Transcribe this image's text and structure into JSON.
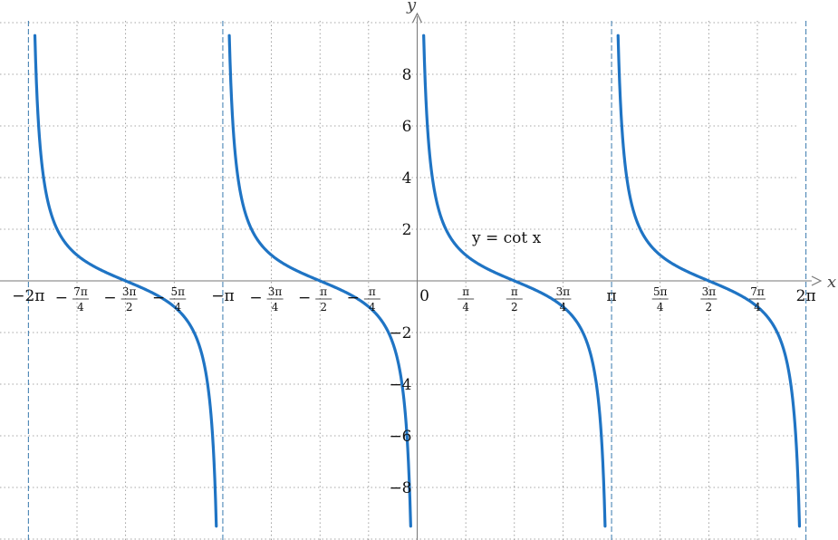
{
  "chart_data": {
    "type": "line",
    "function": "cot",
    "annotation": "y = cot x",
    "xlabel": "x",
    "ylabel": "y",
    "xlim": [
      -6.45,
      6.55
    ],
    "ylim": [
      -10.0,
      10.0
    ],
    "grid": true,
    "asymptotes": [
      "-2π",
      "-π",
      "0",
      "π",
      "2π"
    ],
    "x_ticks": [
      {
        "value": -6.283185,
        "label": "−2π"
      },
      {
        "value": -5.497787,
        "num": "7π",
        "den": "4",
        "neg": true
      },
      {
        "value": -4.712389,
        "num": "3π",
        "den": "2",
        "neg": true
      },
      {
        "value": -3.926991,
        "num": "5π",
        "den": "4",
        "neg": true
      },
      {
        "value": -3.141593,
        "label": "−π"
      },
      {
        "value": -2.356194,
        "num": "3π",
        "den": "4",
        "neg": true
      },
      {
        "value": -1.570796,
        "num": "π",
        "den": "2",
        "neg": true
      },
      {
        "value": -0.785398,
        "num": "π",
        "den": "4",
        "neg": true
      },
      {
        "value": 0,
        "label": "0"
      },
      {
        "value": 0.785398,
        "num": "π",
        "den": "4",
        "neg": false
      },
      {
        "value": 1.570796,
        "num": "π",
        "den": "2",
        "neg": false
      },
      {
        "value": 2.356194,
        "num": "3π",
        "den": "4",
        "neg": false
      },
      {
        "value": 3.141593,
        "label": "π"
      },
      {
        "value": 3.926991,
        "num": "5π",
        "den": "4",
        "neg": false
      },
      {
        "value": 4.712389,
        "num": "3π",
        "den": "2",
        "neg": false
      },
      {
        "value": 5.497787,
        "num": "7π",
        "den": "4",
        "neg": false
      },
      {
        "value": 6.283185,
        "label": "2π"
      }
    ],
    "y_ticks": [
      {
        "value": -8,
        "label": "−8"
      },
      {
        "value": -6,
        "label": "−6"
      },
      {
        "value": -4,
        "label": "−4"
      },
      {
        "value": -2,
        "label": "−2"
      },
      {
        "value": 2,
        "label": "2"
      },
      {
        "value": 4,
        "label": "4"
      },
      {
        "value": 6,
        "label": "6"
      },
      {
        "value": 8,
        "label": "8"
      }
    ],
    "series": [
      {
        "branch": "(-2π, -π)",
        "color": "#1f74c4"
      },
      {
        "branch": "(-π, 0)",
        "color": "#1f74c4"
      },
      {
        "branch": "(0, π)",
        "color": "#1f74c4"
      },
      {
        "branch": "(π, 2π)",
        "color": "#1f74c4"
      }
    ],
    "colors": {
      "curve": "#1f74c4",
      "asymptote": "#3a7bb0",
      "grid": "#8a8a8a",
      "axis": "#777777"
    }
  }
}
